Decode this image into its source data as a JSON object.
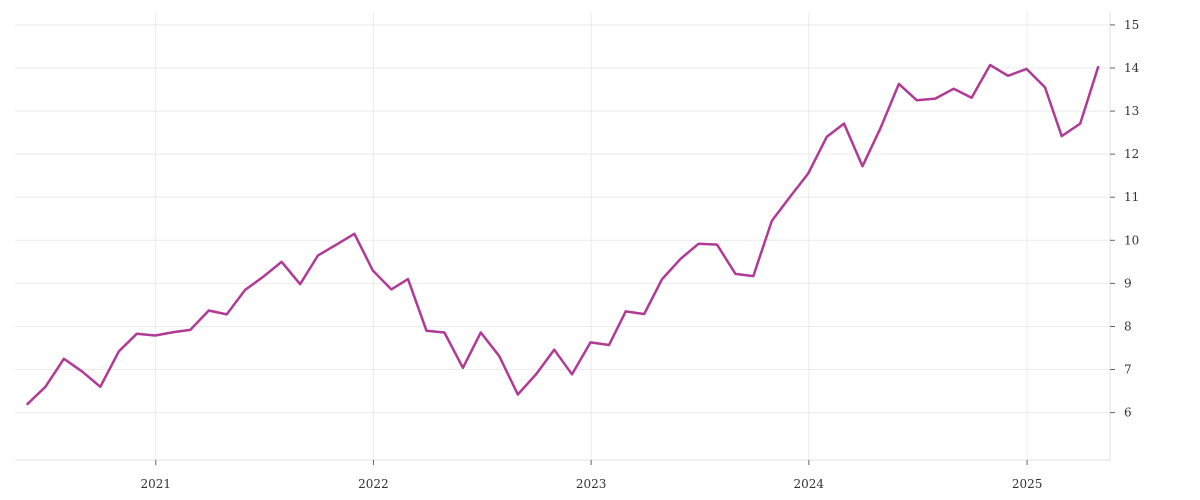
{
  "chart_data": {
    "type": "line",
    "title": "",
    "xlabel": "",
    "ylabel": "",
    "x_ticks": [
      "2021",
      "2022",
      "2023",
      "2024",
      "2025"
    ],
    "y_ticks": [
      "6",
      "7",
      "8",
      "9",
      "10",
      "11",
      "12",
      "13",
      "14",
      "15"
    ],
    "ylim": [
      4.9,
      15.3
    ],
    "xlim": [
      "2020-05-10",
      "2025-05-20"
    ],
    "y_axis_position": "right",
    "grid": true,
    "colors": {
      "line": "#b03a95",
      "grid": "#ebebeb",
      "text": "#333333"
    },
    "series": [
      {
        "x": [
          "2020-05-31",
          "2020-06-30",
          "2020-07-31",
          "2020-08-31",
          "2020-09-30",
          "2020-10-31",
          "2020-11-30",
          "2020-12-31",
          "2021-01-31",
          "2021-02-28",
          "2021-03-31",
          "2021-04-30",
          "2021-05-31",
          "2021-06-30",
          "2021-07-31",
          "2021-08-31",
          "2021-09-30",
          "2021-10-31",
          "2021-11-30",
          "2021-12-31",
          "2022-01-31",
          "2022-02-28",
          "2022-03-31",
          "2022-04-30",
          "2022-05-31",
          "2022-06-30",
          "2022-07-31",
          "2022-08-31",
          "2022-09-30",
          "2022-10-31",
          "2022-11-30",
          "2022-12-31",
          "2023-01-31",
          "2023-02-28",
          "2023-03-31",
          "2023-04-30",
          "2023-05-31",
          "2023-06-30",
          "2023-07-31",
          "2023-08-31",
          "2023-09-30",
          "2023-10-31",
          "2023-11-30",
          "2023-12-31",
          "2024-01-31",
          "2024-02-29",
          "2024-03-31",
          "2024-04-30",
          "2024-05-31",
          "2024-06-30",
          "2024-07-31",
          "2024-08-31",
          "2024-09-30",
          "2024-10-31",
          "2024-11-30",
          "2024-12-31",
          "2025-01-31",
          "2025-02-28",
          "2025-03-31",
          "2025-04-30"
        ],
        "values": [
          6.2,
          6.6,
          7.25,
          6.95,
          6.6,
          7.42,
          7.83,
          7.79,
          7.87,
          7.92,
          8.37,
          8.28,
          8.85,
          9.15,
          9.5,
          8.98,
          9.65,
          9.9,
          10.15,
          9.3,
          8.86,
          9.1,
          7.9,
          7.86,
          7.04,
          7.86,
          7.31,
          6.42,
          6.88,
          7.46,
          6.89,
          7.63,
          7.57,
          8.35,
          8.29,
          9.1,
          9.57,
          9.92,
          9.9,
          9.22,
          9.17,
          10.45,
          11.0,
          11.55,
          12.4,
          12.71,
          11.72,
          12.6,
          13.63,
          13.25,
          13.29,
          13.52,
          13.31,
          14.07,
          13.82,
          13.98,
          13.55,
          12.42,
          12.71,
          14.02
        ]
      }
    ]
  }
}
